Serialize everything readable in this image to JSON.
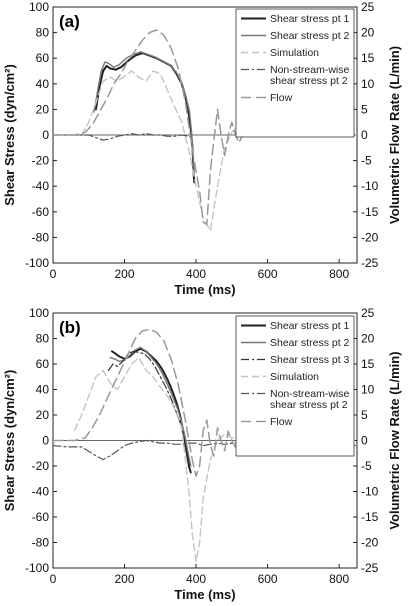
{
  "chart_data": [
    {
      "type": "line",
      "panel_label": "(a)",
      "xlabel": "Time (ms)",
      "ylabel_left": "Shear Stress (dyn/cm²)",
      "ylabel_right": "Volumetric Flow Rate (L/min)",
      "xlim": [
        0,
        850
      ],
      "ylim_left": [
        -100,
        100
      ],
      "ylim_right": [
        -25,
        25
      ],
      "x_ticks": [
        "0",
        "200",
        "400",
        "600",
        "800"
      ],
      "y_ticks_left": [
        "-100",
        "-80",
        "-60",
        "-40",
        "-20",
        "0",
        "20",
        "40",
        "60",
        "80",
        "100"
      ],
      "y_ticks_right": [
        "-25",
        "-20",
        "-15",
        "-10",
        "-5",
        "0",
        "5",
        "10",
        "15",
        "20",
        "25"
      ],
      "legend_position": "top-right",
      "series": [
        {
          "name": "Shear stress pt 1",
          "axis": "left",
          "color": "#222222",
          "dash": "",
          "width": 2,
          "x": [
            120,
            130,
            140,
            150,
            160,
            175,
            190,
            210,
            230,
            250,
            270,
            290,
            310,
            330,
            345,
            360,
            370,
            378,
            385,
            390,
            393,
            395
          ],
          "y": [
            20,
            38,
            50,
            54,
            52,
            51,
            53,
            58,
            62,
            64,
            62,
            60,
            57,
            54,
            48,
            40,
            30,
            20,
            5,
            -10,
            -30,
            -37
          ]
        },
        {
          "name": "Shear stress pt 2",
          "axis": "left",
          "color": "#777777",
          "dash": "",
          "width": 1.4,
          "x": [
            115,
            125,
            135,
            145,
            155,
            170,
            185,
            205,
            225,
            245,
            265,
            285,
            305,
            325,
            345,
            360,
            372,
            382,
            388,
            393
          ],
          "y": [
            18,
            35,
            50,
            57,
            56,
            53,
            55,
            60,
            63,
            65,
            63,
            61,
            58,
            55,
            49,
            41,
            30,
            18,
            0,
            -25
          ]
        },
        {
          "name": "Simulation",
          "axis": "left",
          "color": "#c4c4c4",
          "dash": "7 4",
          "width": 1.4,
          "x": [
            80,
            100,
            120,
            140,
            160,
            180,
            200,
            220,
            240,
            260,
            280,
            300,
            320,
            340,
            360,
            380,
            400,
            420,
            440,
            460,
            480,
            500,
            520,
            540,
            560,
            600,
            650,
            700,
            750,
            800,
            850
          ],
          "y": [
            0,
            10,
            25,
            42,
            45,
            42,
            46,
            50,
            45,
            42,
            50,
            48,
            35,
            22,
            10,
            -12,
            -40,
            -65,
            -75,
            -40,
            -10,
            2,
            8,
            2,
            0,
            0,
            0,
            0,
            0,
            0,
            0
          ]
        },
        {
          "name": "Non-stream-wise\nshear stress pt 2",
          "axis": "left",
          "color": "#555555",
          "dash": "8 3 2 3",
          "width": 1.2,
          "x": [
            0,
            100,
            120,
            140,
            160,
            180,
            200,
            220,
            240,
            260,
            280,
            300,
            320,
            340,
            360,
            380,
            395
          ],
          "y": [
            0,
            0,
            -2,
            -4,
            -3,
            -1,
            0,
            1,
            0,
            1,
            0,
            0,
            -1,
            -1,
            0,
            -1,
            -2
          ]
        },
        {
          "name": "Flow",
          "axis": "right",
          "color": "#999999",
          "dash": "10 5",
          "width": 1.5,
          "x": [
            0,
            60,
            90,
            110,
            130,
            150,
            170,
            190,
            210,
            230,
            250,
            270,
            290,
            310,
            330,
            350,
            370,
            390,
            410,
            420,
            430,
            440,
            450,
            460,
            470,
            480,
            490,
            500,
            510,
            520,
            530,
            540,
            560,
            580,
            600,
            650,
            700,
            800,
            850
          ],
          "y": [
            0,
            0,
            0.5,
            2,
            4.5,
            7,
            10,
            12,
            14.5,
            16.5,
            18.5,
            20,
            20.5,
            19.5,
            17,
            13,
            6.5,
            -3,
            -11,
            -17,
            -17.5,
            -7,
            -1,
            5,
            0,
            -4,
            0,
            2.5,
            0,
            -1.5,
            0,
            0.8,
            0,
            -0.3,
            0,
            0,
            0,
            0,
            0
          ]
        }
      ]
    },
    {
      "type": "line",
      "panel_label": "(b)",
      "xlabel": "Time (ms)",
      "ylabel_left": "Shear Stress (dyn/cm²)",
      "ylabel_right": "Volumetric Flow Rate (L/min)",
      "xlim": [
        0,
        850
      ],
      "ylim_left": [
        -100,
        100
      ],
      "ylim_right": [
        -25,
        25
      ],
      "x_ticks": [
        "0",
        "200",
        "400",
        "600",
        "800"
      ],
      "y_ticks_left": [
        "-100",
        "-80",
        "-60",
        "-40",
        "-20",
        "0",
        "20",
        "40",
        "60",
        "80",
        "100"
      ],
      "y_ticks_right": [
        "-25",
        "-20",
        "-15",
        "-10",
        "-5",
        "0",
        "5",
        "10",
        "15",
        "20",
        "25"
      ],
      "legend_position": "top-right",
      "series": [
        {
          "name": "Shear stress pt 1",
          "axis": "left",
          "color": "#222222",
          "dash": "",
          "width": 2,
          "x": [
            165,
            175,
            185,
            200,
            215,
            230,
            245,
            260,
            275,
            290,
            305,
            320,
            335,
            345,
            355,
            362,
            368,
            374,
            380,
            385
          ],
          "y": [
            70,
            68,
            66,
            64,
            66,
            70,
            72,
            70,
            66,
            62,
            56,
            48,
            38,
            30,
            20,
            10,
            0,
            -10,
            -20,
            -25
          ]
        },
        {
          "name": "Shear stress pt 2",
          "axis": "left",
          "color": "#777777",
          "dash": "",
          "width": 1.4,
          "x": [
            160,
            172,
            185,
            200,
            215,
            230,
            245,
            260,
            275,
            290,
            305,
            320,
            335,
            348,
            360,
            370,
            378,
            385
          ],
          "y": [
            65,
            64,
            62,
            63,
            67,
            71,
            73,
            70,
            65,
            60,
            53,
            44,
            34,
            25,
            14,
            2,
            -10,
            -20
          ]
        },
        {
          "name": "Shear stress pt 3",
          "axis": "left",
          "color": "#333333",
          "dash": "8 3 2 3",
          "width": 1.2,
          "x": [
            155,
            168,
            180,
            195,
            210,
            225,
            240,
            255,
            270,
            285,
            300,
            315,
            330,
            345,
            358,
            368,
            376,
            382
          ],
          "y": [
            55,
            60,
            58,
            62,
            68,
            70,
            69,
            68,
            64,
            58,
            50,
            42,
            33,
            22,
            12,
            0,
            -12,
            -20
          ]
        },
        {
          "name": "Simulation",
          "axis": "left",
          "color": "#c4c4c4",
          "dash": "7 4",
          "width": 1.4,
          "x": [
            60,
            80,
            100,
            120,
            140,
            160,
            180,
            200,
            220,
            240,
            260,
            280,
            300,
            320,
            340,
            360,
            380,
            390,
            400,
            410,
            420,
            440,
            460,
            480,
            500,
            550,
            600,
            700,
            850
          ],
          "y": [
            8,
            20,
            35,
            50,
            55,
            45,
            40,
            50,
            60,
            65,
            55,
            50,
            42,
            35,
            25,
            10,
            -40,
            -75,
            -95,
            -80,
            -45,
            -15,
            0,
            5,
            2,
            0,
            0,
            0,
            0
          ]
        },
        {
          "name": "Non-stream-wise\nshear stress pt 2",
          "axis": "left",
          "color": "#555555",
          "dash": "8 3 2 3",
          "width": 1.2,
          "x": [
            0,
            40,
            80,
            120,
            140,
            160,
            180,
            200,
            220,
            240,
            260,
            280,
            300,
            320,
            340,
            360,
            380,
            400,
            420,
            440,
            460,
            480,
            500,
            550,
            600,
            700,
            800,
            850
          ],
          "y": [
            -4,
            -5,
            -5,
            -12,
            -15,
            -12,
            -8,
            -4,
            -2,
            -1,
            0,
            -1,
            -2,
            -2,
            -3,
            -3,
            -2,
            -2,
            -4,
            -3,
            -2,
            -3,
            -2,
            -2,
            -3,
            -3,
            -4,
            -4
          ]
        },
        {
          "name": "Flow",
          "axis": "right",
          "color": "#999999",
          "dash": "10 5",
          "width": 1.5,
          "x": [
            0,
            60,
            90,
            110,
            130,
            150,
            170,
            190,
            210,
            230,
            250,
            270,
            290,
            310,
            330,
            350,
            370,
            390,
            400,
            410,
            420,
            430,
            440,
            450,
            460,
            470,
            480,
            490,
            500,
            510,
            520,
            530,
            540,
            550,
            560,
            580,
            600,
            650,
            700,
            800,
            850
          ],
          "y": [
            0,
            0,
            0.5,
            2.5,
            5,
            8,
            11,
            14,
            17,
            20,
            21.5,
            21.8,
            21.2,
            19.5,
            16,
            11,
            4,
            -4,
            -7,
            -5,
            2,
            4,
            -1,
            -3,
            2.5,
            0,
            -2,
            1.8,
            0,
            -1.3,
            1,
            0,
            -0.8,
            0.5,
            0,
            0.3,
            0,
            0,
            0,
            0,
            0
          ]
        }
      ]
    }
  ]
}
